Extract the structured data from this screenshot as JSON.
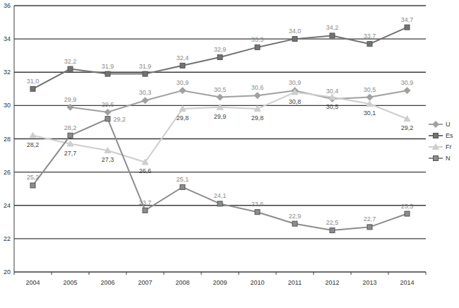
{
  "chart_data": {
    "type": "line",
    "categories": [
      "2004",
      "2005",
      "2006",
      "2007",
      "2008",
      "2009",
      "2010",
      "2011",
      "2012",
      "2013",
      "2014"
    ],
    "ylim": [
      20,
      36
    ],
    "yticks": [
      20,
      22,
      24,
      26,
      28,
      30,
      32,
      34,
      36
    ],
    "grid": true,
    "legend": "right",
    "data_labels": true,
    "series": [
      {
        "name": "U",
        "color": "#a0a0a0",
        "marker": "diamond",
        "values": [
          null,
          29.9,
          29.6,
          30.3,
          30.9,
          30.5,
          30.6,
          30.9,
          30.4,
          30.5,
          30.9
        ],
        "value_labels": [
          null,
          "29,9",
          "29,6",
          "30,3",
          "30,9",
          "30,5",
          "30,6",
          "30,9",
          "30,4",
          "30,5",
          "30,9"
        ]
      },
      {
        "name": "Es",
        "color": "#727272",
        "marker": "square",
        "values": [
          31.0,
          32.2,
          31.9,
          31.9,
          32.4,
          32.9,
          33.5,
          34.0,
          34.2,
          33.7,
          34.7
        ],
        "value_labels": [
          "31,0",
          "32,2",
          "31,9",
          "31,9",
          "32,4",
          "32,9",
          "33,5",
          "34,0",
          "34,2",
          "33,7",
          "34,7"
        ]
      },
      {
        "name": "Fr",
        "color": "#cecece",
        "marker": "triangle",
        "values": [
          28.2,
          27.7,
          27.3,
          26.6,
          29.8,
          29.9,
          29.8,
          30.8,
          30.5,
          30.1,
          29.2
        ],
        "value_labels": [
          "28,2",
          "27,7",
          "27,3",
          "26,6",
          "29,8",
          "29,9",
          "29,8",
          "30,8",
          "30,5",
          "30,1",
          "29,2"
        ]
      },
      {
        "name": "N",
        "color": "#8c8c8c",
        "marker": "square",
        "values": [
          25.2,
          28.2,
          29.2,
          23.7,
          25.1,
          24.1,
          23.6,
          22.9,
          22.5,
          22.7,
          23.5
        ],
        "value_labels": [
          "25,2",
          "28,2",
          "29,2",
          "23,7",
          "25,1",
          "24,1",
          "23,6",
          "22,9",
          "22,5",
          "22,7",
          "23,5"
        ]
      }
    ]
  }
}
